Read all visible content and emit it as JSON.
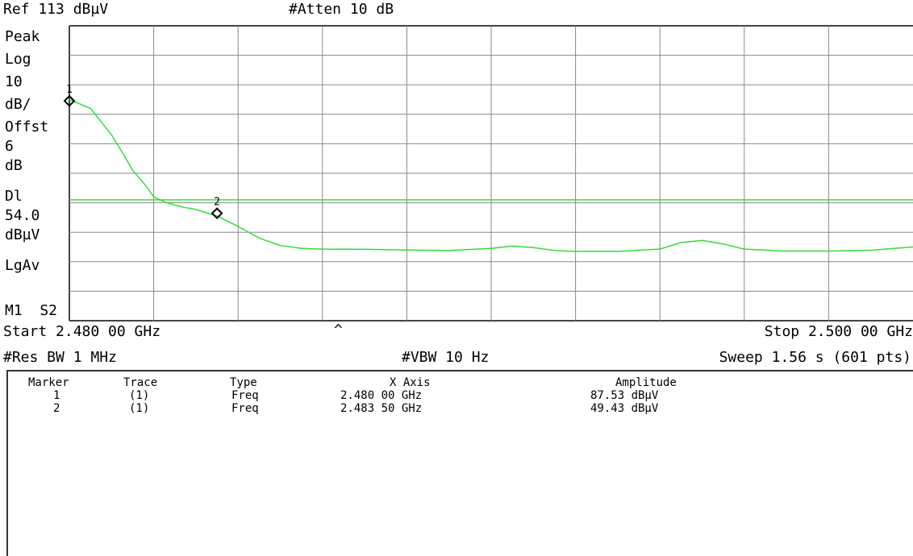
{
  "header": {
    "ref_level": "Ref 113 dBµV",
    "atten": "#Atten 10 dB"
  },
  "side_labels": {
    "detector": "Peak",
    "scale_type": "Log",
    "scale_value": "10",
    "scale_unit": "dB/",
    "offset_label": "Offst",
    "offset_value": "6",
    "offset_unit": "dB",
    "display_line_label": "Dl",
    "display_line_value": "54.0",
    "display_line_unit": "dBµV",
    "average_mode": "LgAv",
    "trace_state": "M1  S2"
  },
  "footer": {
    "start": "Start 2.480 00 GHz",
    "stop": "Stop 2.500 00 GHz",
    "res_bw": "#Res BW 1 MHz",
    "vbw": "#VBW 10 Hz",
    "sweep": "Sweep 1.56 s (601 pts)",
    "center_mark": "^"
  },
  "marker_table": {
    "headers": [
      "Marker",
      "Trace",
      "Type",
      "X Axis",
      "Amplitude"
    ],
    "rows": [
      [
        "1",
        "(1)",
        "Freq",
        "2.480 00 GHz",
        "87.53 dBµV"
      ],
      [
        "2",
        "(1)",
        "Freq",
        "2.483 50 GHz",
        "49.43 dBµV"
      ]
    ]
  },
  "colors": {
    "trace": "#33dd33",
    "display_line": "#33dd33",
    "grid": "#888888",
    "marker": "#000000"
  },
  "chart_data": {
    "type": "line",
    "xlabel": "",
    "ylabel": "",
    "xlim": [
      2.48,
      2.5
    ],
    "ylim": [
      13,
      113
    ],
    "grid": true,
    "display_line": 54.0,
    "markers": [
      {
        "label": "1",
        "x": 2.48,
        "y": 87.53
      },
      {
        "label": "2",
        "x": 2.4835,
        "y": 49.43
      }
    ],
    "series": [
      {
        "x": [
          2.48,
          2.4805,
          2.481,
          2.4813,
          2.4815,
          2.4818,
          2.482,
          2.4823,
          2.4827,
          2.483,
          2.4835,
          2.484,
          2.4845,
          2.485,
          2.4855,
          2.486,
          2.487,
          2.488,
          2.489,
          2.49,
          2.4905,
          2.491,
          2.4915,
          2.492,
          2.493,
          2.494,
          2.4945,
          2.495,
          2.4955,
          2.496,
          2.497,
          2.498,
          2.499,
          2.5
        ],
        "y": [
          88,
          85,
          76,
          69,
          64,
          59,
          55,
          53,
          51.5,
          50.7,
          48.5,
          45,
          41,
          38.5,
          37.5,
          37.3,
          37.2,
          37,
          36.8,
          37.5,
          38.3,
          37.8,
          36.8,
          36.5,
          36.5,
          37.3,
          39.5,
          40.2,
          39,
          37.3,
          36.6,
          36.6,
          36.9,
          38
        ]
      }
    ]
  }
}
